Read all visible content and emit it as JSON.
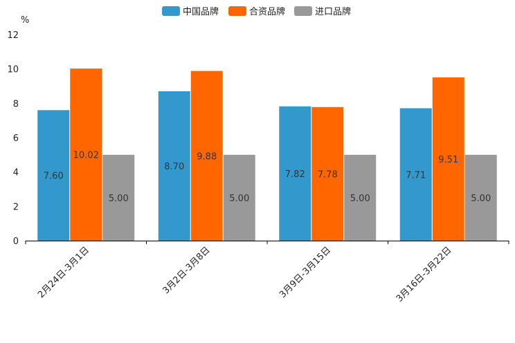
{
  "chart_data": {
    "type": "bar",
    "title": "",
    "xlabel": "",
    "ylabel": "%",
    "ylim": [
      0,
      12
    ],
    "yticks": [
      0,
      2,
      4,
      6,
      8,
      10,
      12
    ],
    "categories": [
      "2月24日-3月1日",
      "3月2日-3月8日",
      "3月9日-3月15日",
      "3月16日-3月22日"
    ],
    "series": [
      {
        "name": "中国品牌",
        "color": "#3399cc",
        "values": [
          7.6,
          8.7,
          7.82,
          7.71
        ],
        "labels": [
          "7.60",
          "8.70",
          "7.82",
          "7.71"
        ]
      },
      {
        "name": "合资品牌",
        "color": "#ff6600",
        "values": [
          10.02,
          9.88,
          7.78,
          9.51
        ],
        "labels": [
          "10.02",
          "9.88",
          "7.78",
          "9.51"
        ]
      },
      {
        "name": "进口品牌",
        "color": "#999999",
        "values": [
          5.0,
          5.0,
          5.0,
          5.0
        ],
        "labels": [
          "5.00",
          "5.00",
          "5.00",
          "5.00"
        ]
      }
    ],
    "legend_position": "top-center",
    "grid": false
  }
}
